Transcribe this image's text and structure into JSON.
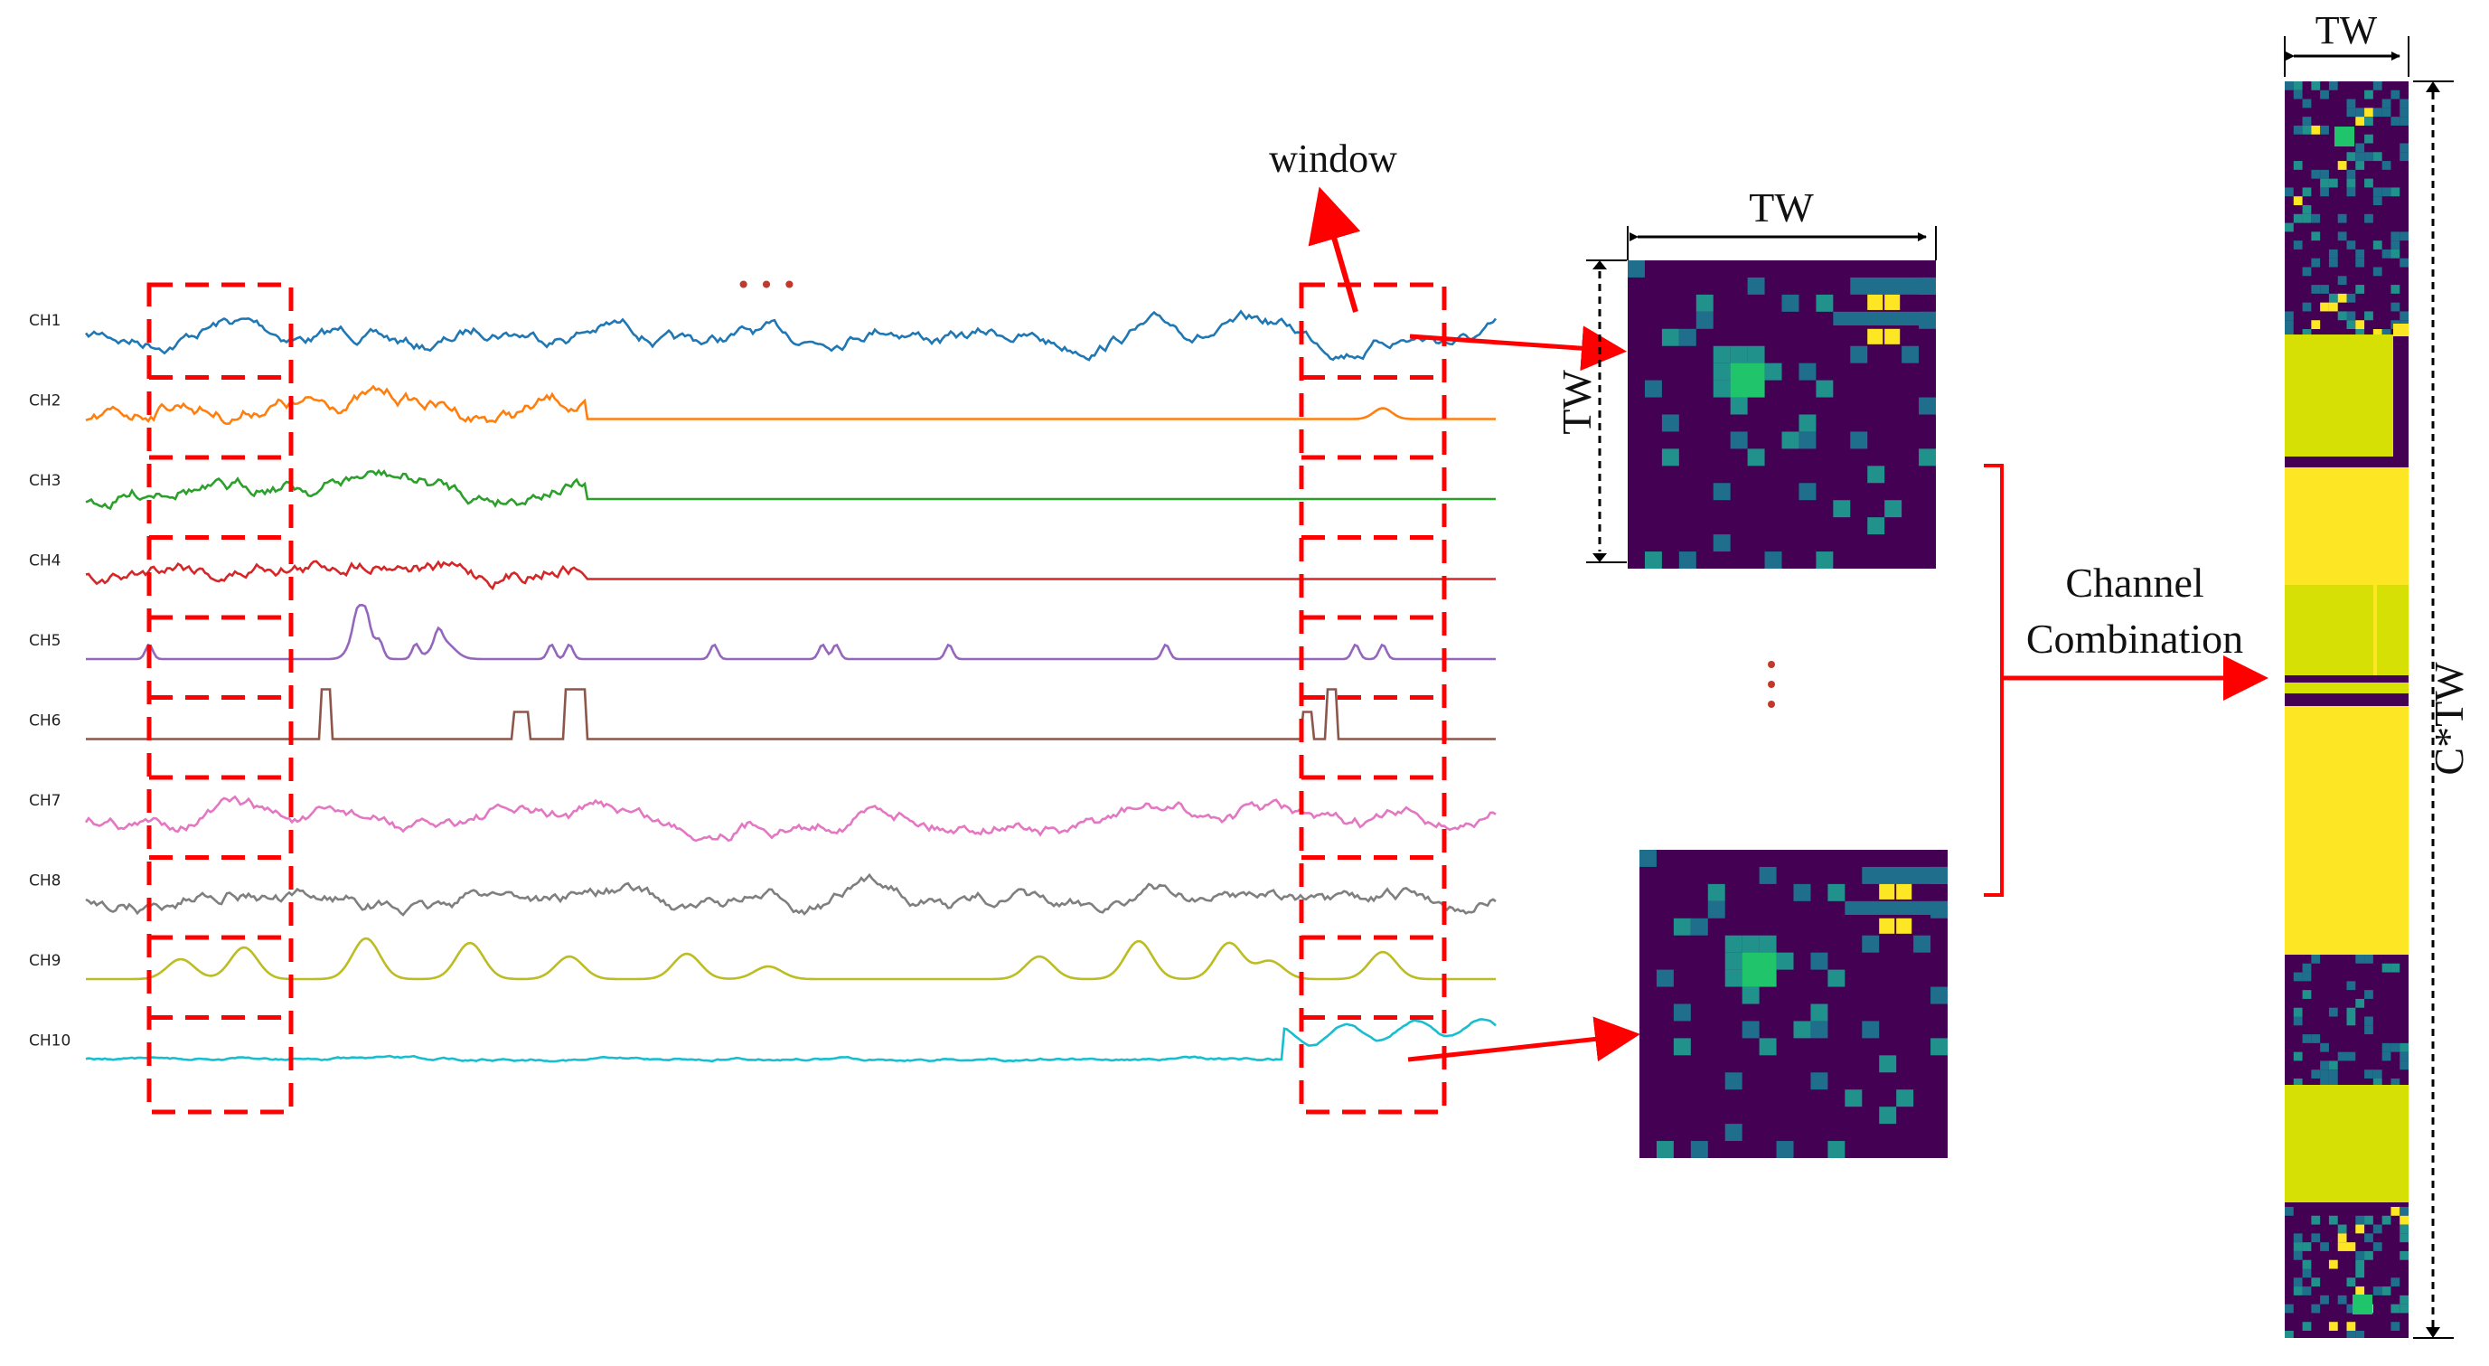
{
  "diagram": {
    "window_label": "window",
    "top_ellipsis": "• • •",
    "middle_ellipsis": "• • •",
    "tw_label_top_matrix": "TW",
    "tw_label_side_matrix": "TW",
    "tw_label_combined": "TW",
    "ctw_label": "C*TW",
    "combination_label_line1": "Channel",
    "combination_label_line2": "Combination"
  },
  "channels": [
    {
      "label": "CH1",
      "color": "#1f77b4",
      "kind": "noisy"
    },
    {
      "label": "CH2",
      "color": "#ff7f0e",
      "kind": "early"
    },
    {
      "label": "CH3",
      "color": "#2ca02c",
      "kind": "early"
    },
    {
      "label": "CH4",
      "color": "#d62728",
      "kind": "early"
    },
    {
      "label": "CH5",
      "color": "#9467bd",
      "kind": "spiky"
    },
    {
      "label": "CH6",
      "color": "#8c564b",
      "kind": "pulse"
    },
    {
      "label": "CH7",
      "color": "#e377c2",
      "kind": "noisy"
    },
    {
      "label": "CH8",
      "color": "#7f7f7f",
      "kind": "noisy"
    },
    {
      "label": "CH9",
      "color": "#bcbd22",
      "kind": "bumps"
    },
    {
      "label": "CH10",
      "color": "#17becf",
      "kind": "late"
    }
  ],
  "colors": {
    "window_box": "#ff0000",
    "arrow": "#ff0000",
    "matrix_bg": "#440154",
    "matrix_blue": "#1f6e8c",
    "matrix_teal": "#21918c",
    "matrix_green": "#20c46a",
    "matrix_yellow": "#fde725",
    "matrix_lime": "#d6e005"
  }
}
